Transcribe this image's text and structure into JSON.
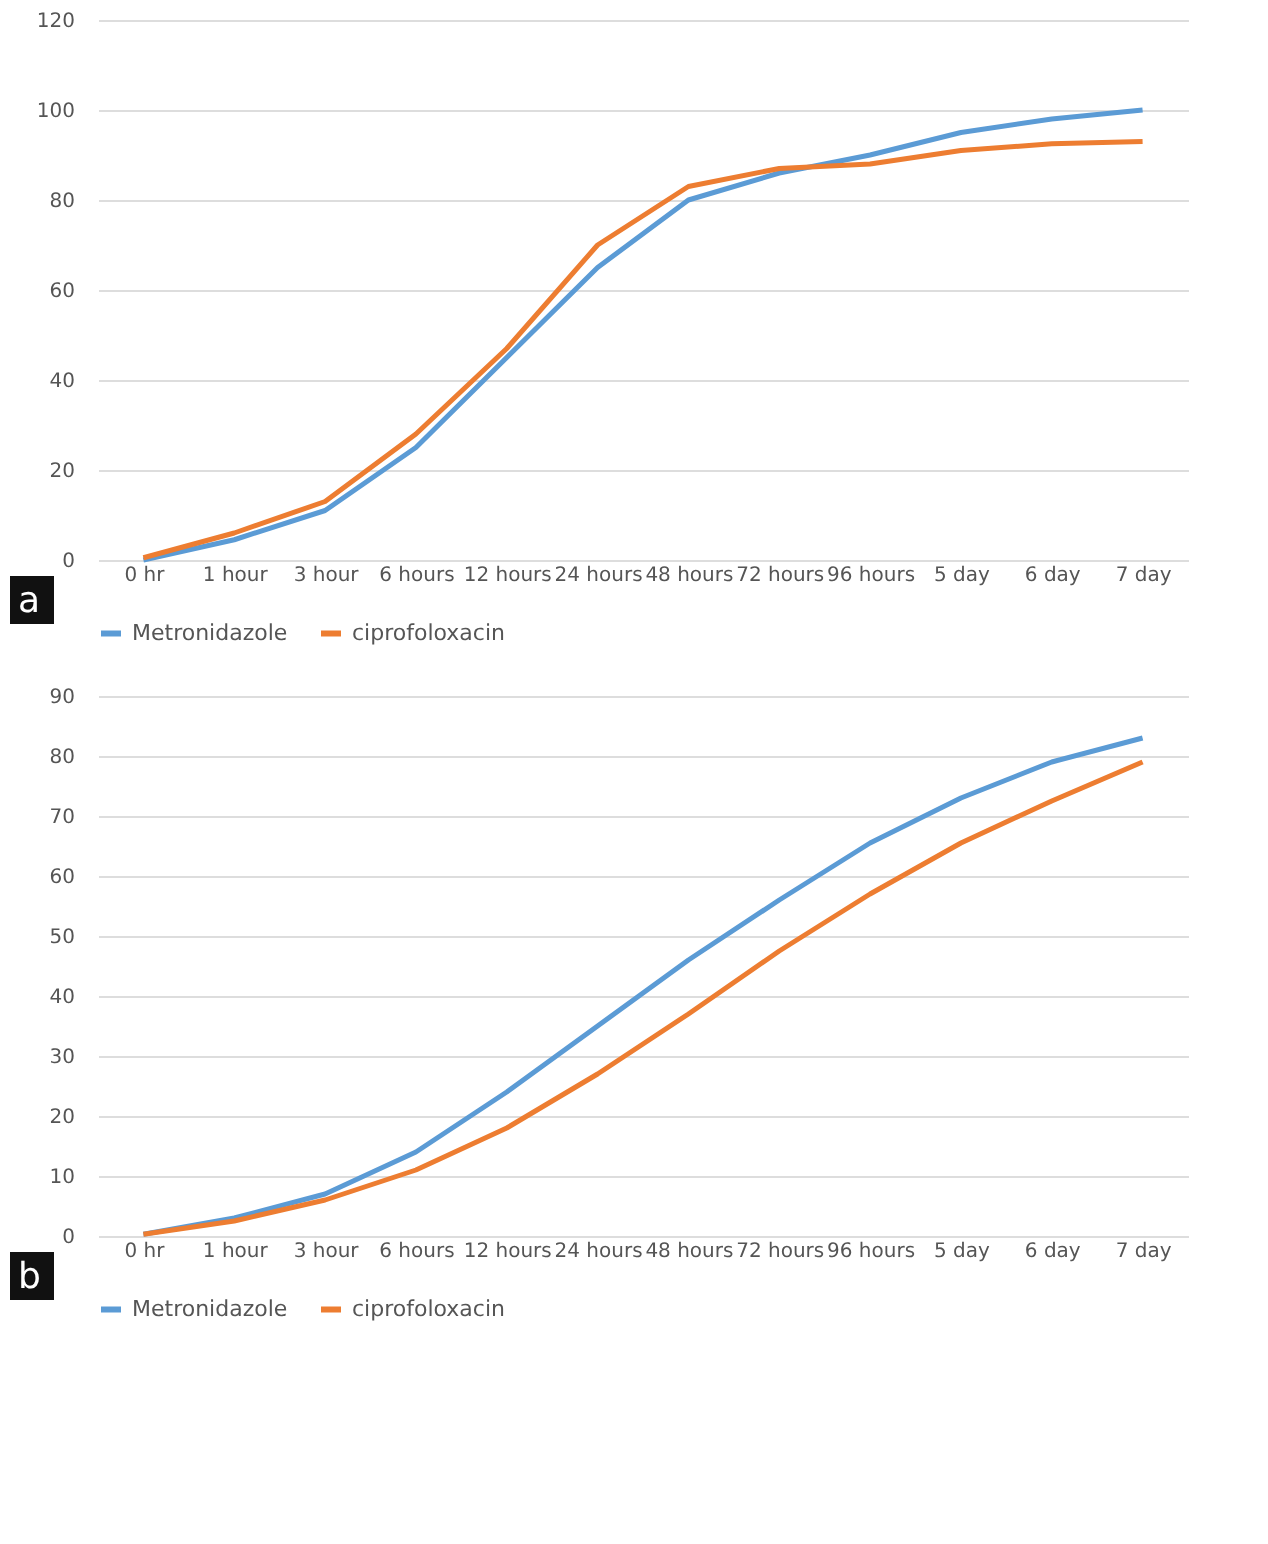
{
  "chart_data": [
    {
      "type": "line",
      "categories": [
        "0 hr",
        "1 hour",
        "3 hour",
        "6 hours",
        "12 hours",
        "24 hours",
        "48 hours",
        "72 hours",
        "96 hours",
        "5 day",
        "6 day",
        "7 day"
      ],
      "series": [
        {
          "name": "Metronidazole",
          "color": "#5b9bd5",
          "values": [
            0,
            4.5,
            11,
            25,
            45,
            65,
            80,
            86,
            90,
            95,
            98,
            100
          ]
        },
        {
          "name": "ciprofoloxacin",
          "color": "#ed7d31",
          "values": [
            0.5,
            6,
            13,
            28,
            47,
            70,
            83,
            87,
            88,
            91,
            92.5,
            93
          ]
        }
      ],
      "ylim": [
        0,
        120
      ],
      "yticks": [
        0,
        20,
        40,
        60,
        80,
        100,
        120
      ],
      "grid": "y",
      "legend": "bottom",
      "marker": "none",
      "line_style": "solid",
      "annotations": [
        "a"
      ]
    },
    {
      "type": "line",
      "categories": [
        "0 hr",
        "1 hour",
        "3 hour",
        "6 hours",
        "12 hours",
        "24 hours",
        "48 hours",
        "72 hours",
        "96 hours",
        "5 day",
        "6 day",
        "7 day"
      ],
      "series": [
        {
          "name": "Metronidazole",
          "color": "#5b9bd5",
          "values": [
            0.3,
            3,
            7,
            14,
            24,
            35,
            46,
            56,
            65.5,
            73,
            79,
            83
          ]
        },
        {
          "name": "ciprofoloxacin",
          "color": "#ed7d31",
          "values": [
            0.3,
            2.5,
            6,
            11,
            18,
            27,
            37,
            47.5,
            57,
            65.5,
            72.5,
            79
          ]
        }
      ],
      "ylim": [
        0,
        90
      ],
      "yticks": [
        0,
        10,
        20,
        30,
        40,
        50,
        60,
        70,
        80,
        90
      ],
      "grid": "y",
      "legend": "bottom",
      "marker": "none",
      "line_style": "solid",
      "annotations": [
        "b"
      ]
    }
  ]
}
